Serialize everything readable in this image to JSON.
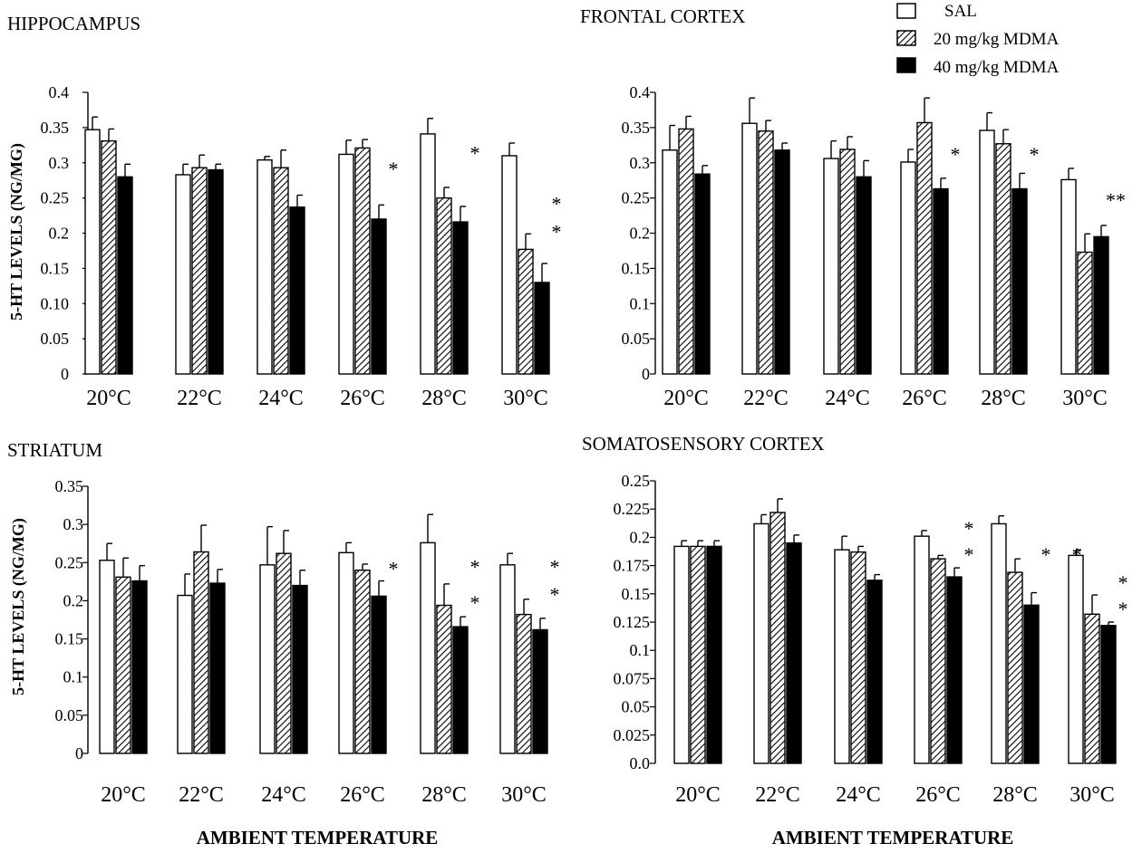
{
  "legend": {
    "entries": [
      {
        "label": "SAL",
        "style": "open"
      },
      {
        "label": "20 mg/kg MDMA",
        "style": "hatched"
      },
      {
        "label": "40 mg/kg MDMA",
        "style": "solid"
      }
    ]
  },
  "y_axis_label": "5-HT LEVELS (NG/MG)",
  "x_axis_label": "AMBIENT TEMPERATURE",
  "chart_data": [
    {
      "type": "bar",
      "title": "HIPPOCAMPUS",
      "categories": [
        "20°C",
        "22°C",
        "24°C",
        "26°C",
        "28°C",
        "30°C"
      ],
      "ylim": [
        0,
        0.4
      ],
      "yticks": [
        "0",
        "0.05",
        "0.10",
        "0.15",
        "0.2",
        "0.25",
        "0.3",
        "0.35",
        "0.4"
      ],
      "ylabel": "5-HT LEVELS (NG/MG)",
      "xlabel": "",
      "series": [
        {
          "name": "SAL",
          "values": [
            0.347,
            0.283,
            0.304,
            0.312,
            0.341,
            0.31
          ],
          "errors": [
            0.018,
            0.015,
            0.005,
            0.02,
            0.022,
            0.018
          ]
        },
        {
          "name": "20 mg/kg MDMA",
          "values": [
            0.331,
            0.293,
            0.293,
            0.321,
            0.25,
            0.177
          ],
          "errors": [
            0.017,
            0.018,
            0.025,
            0.012,
            0.015,
            0.022
          ]
        },
        {
          "name": "40 mg/kg MDMA",
          "values": [
            0.28,
            0.29,
            0.237,
            0.22,
            0.216,
            0.13
          ],
          "errors": [
            0.018,
            0.008,
            0.017,
            0.02,
            0.022,
            0.027
          ]
        }
      ],
      "annotations": [
        {
          "text": "*",
          "category": "26°C",
          "value": 0.3
        },
        {
          "text": "*",
          "category": "28°C",
          "value": 0.322
        },
        {
          "text": "*",
          "category": "30°C",
          "value": 0.25
        },
        {
          "text": "*",
          "category": "30°C",
          "value": 0.21
        }
      ]
    },
    {
      "type": "bar",
      "title": "FRONTAL CORTEX",
      "categories": [
        "20°C",
        "22°C",
        "24°C",
        "26°C",
        "28°C",
        "30°C"
      ],
      "ylim": [
        0,
        0.4
      ],
      "yticks": [
        "0",
        "0.05",
        "0.1",
        "0.15",
        "0.2",
        "0.25",
        "0.3",
        "0.35",
        "0.4"
      ],
      "ylabel": "",
      "xlabel": "",
      "series": [
        {
          "name": "SAL",
          "values": [
            0.318,
            0.356,
            0.306,
            0.301,
            0.346,
            0.276
          ],
          "errors": [
            0.035,
            0.036,
            0.025,
            0.018,
            0.025,
            0.016
          ]
        },
        {
          "name": "20 mg/kg MDMA",
          "values": [
            0.348,
            0.345,
            0.319,
            0.357,
            0.327,
            0.173
          ],
          "errors": [
            0.018,
            0.015,
            0.018,
            0.035,
            0.02,
            0.026
          ]
        },
        {
          "name": "40 mg/kg MDMA",
          "values": [
            0.284,
            0.318,
            0.28,
            0.263,
            0.263,
            0.195
          ],
          "errors": [
            0.012,
            0.01,
            0.023,
            0.015,
            0.022,
            0.016
          ]
        }
      ],
      "annotations": [
        {
          "text": "*",
          "category": "26°C",
          "value": 0.32
        },
        {
          "text": "*",
          "category": "28°C",
          "value": 0.32
        },
        {
          "text": "**",
          "category": "30°C",
          "value": 0.255
        }
      ]
    },
    {
      "type": "bar",
      "title": "STRIATUM",
      "categories": [
        "20°C",
        "22°C",
        "24°C",
        "26°C",
        "28°C",
        "30°C"
      ],
      "ylim": [
        0,
        0.35
      ],
      "yticks": [
        "0",
        "0.05",
        "0.1",
        "0.15",
        "0.2",
        "0.25",
        "0.3",
        "0.35"
      ],
      "ylabel": "5-HT LEVELS (NG/MG)",
      "xlabel": "AMBIENT TEMPERATURE",
      "series": [
        {
          "name": "SAL",
          "values": [
            0.253,
            0.207,
            0.247,
            0.263,
            0.276,
            0.247
          ],
          "errors": [
            0.022,
            0.028,
            0.05,
            0.013,
            0.037,
            0.015
          ]
        },
        {
          "name": "20 mg/kg MDMA",
          "values": [
            0.231,
            0.264,
            0.262,
            0.24,
            0.194,
            0.182
          ],
          "errors": [
            0.025,
            0.035,
            0.03,
            0.008,
            0.028,
            0.02
          ]
        },
        {
          "name": "40 mg/kg MDMA",
          "values": [
            0.226,
            0.223,
            0.22,
            0.206,
            0.166,
            0.162
          ],
          "errors": [
            0.02,
            0.018,
            0.02,
            0.02,
            0.013,
            0.015
          ]
        }
      ],
      "annotations": [
        {
          "text": "*",
          "category": "26°C",
          "value": 0.25
        },
        {
          "text": "*",
          "category": "28°C",
          "value": 0.252
        },
        {
          "text": "*",
          "category": "28°C",
          "value": 0.205
        },
        {
          "text": "*",
          "category": "30°C",
          "value": 0.252
        },
        {
          "text": "*",
          "category": "30°C",
          "value": 0.216
        }
      ]
    },
    {
      "type": "bar",
      "title": "SOMATOSENSORY CORTEX",
      "categories": [
        "20°C",
        "22°C",
        "24°C",
        "26°C",
        "28°C",
        "30°C"
      ],
      "ylim": [
        0,
        0.25
      ],
      "yticks": [
        "0.0",
        "0.025",
        "0.05",
        "0.075",
        "0.1",
        "0.125",
        "0.15",
        "0.175",
        "0.2",
        "0.225",
        "0.25"
      ],
      "ylabel": "",
      "xlabel": "AMBIENT TEMPERATURE",
      "series": [
        {
          "name": "SAL",
          "values": [
            0.192,
            0.212,
            0.189,
            0.201,
            0.212,
            0.184
          ],
          "errors": [
            0.005,
            0.008,
            0.012,
            0.005,
            0.007,
            0.005
          ]
        },
        {
          "name": "20 mg/kg MDMA",
          "values": [
            0.192,
            0.222,
            0.187,
            0.181,
            0.169,
            0.132
          ],
          "errors": [
            0.005,
            0.012,
            0.005,
            0.003,
            0.012,
            0.017
          ]
        },
        {
          "name": "40 mg/kg MDMA",
          "values": [
            0.192,
            0.195,
            0.162,
            0.165,
            0.14,
            0.122
          ],
          "errors": [
            0.005,
            0.007,
            0.005,
            0.008,
            0.011,
            0.003
          ]
        }
      ],
      "annotations": [
        {
          "text": "*",
          "category": "26°C",
          "value": 0.213
        },
        {
          "text": "*",
          "category": "26°C",
          "value": 0.19
        },
        {
          "text": "*",
          "category": "28°C",
          "value": 0.19
        },
        {
          "text": "*",
          "category": "28°C",
          "value": 0.19
        },
        {
          "text": "*",
          "category": "30°C",
          "value": 0.165
        },
        {
          "text": "*",
          "category": "30°C",
          "value": 0.142
        }
      ]
    }
  ]
}
